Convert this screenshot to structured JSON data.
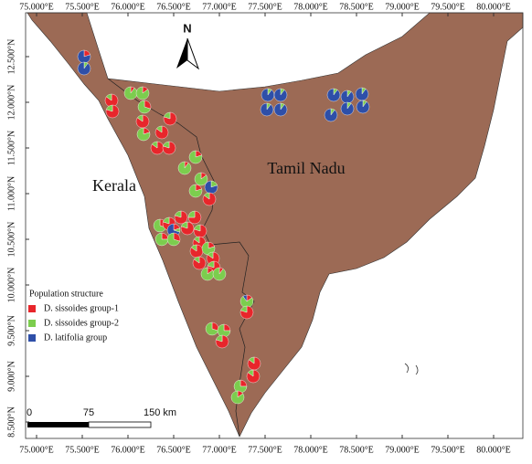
{
  "chart_data": {
    "type": "pie-map",
    "xlim": [
      74.88,
      80.32
    ],
    "ylim": [
      8.32,
      12.98
    ],
    "xticks": [
      {
        "value": 75,
        "label": "75.000°E"
      },
      {
        "value": 75.5,
        "label": "75.500°E"
      },
      {
        "value": 76,
        "label": "76.000°E"
      },
      {
        "value": 76.5,
        "label": "76.500°E"
      },
      {
        "value": 77,
        "label": "77.000°E"
      },
      {
        "value": 77.5,
        "label": "77.500°E"
      },
      {
        "value": 78,
        "label": "78.000°E"
      },
      {
        "value": 78.5,
        "label": "78.500°E"
      },
      {
        "value": 79,
        "label": "79.000°E"
      },
      {
        "value": 79.5,
        "label": "79.500°E"
      },
      {
        "value": 80,
        "label": "80.000°E"
      }
    ],
    "yticks": [
      {
        "value": 8.5,
        "label": "8.500°N"
      },
      {
        "value": 9,
        "label": "9.000°N"
      },
      {
        "value": 9.5,
        "label": "9.500°N"
      },
      {
        "value": 10,
        "label": "10.000°N"
      },
      {
        "value": 10.5,
        "label": "10.500°N"
      },
      {
        "value": 11,
        "label": "11.000°N"
      },
      {
        "value": 11.5,
        "label": "11.500°N"
      },
      {
        "value": 12,
        "label": "12.000°N"
      },
      {
        "value": 12.5,
        "label": "12.500°N"
      }
    ],
    "north_label": "N",
    "regions": [
      "Kerala",
      "Tamil Nadu"
    ],
    "legend_title": "Population structure",
    "series": [
      {
        "name": "D. sissoides group-1",
        "color": "#e8262b"
      },
      {
        "name": "D. sissoides group-2",
        "color": "#7ccd4e"
      },
      {
        "name": "D. latifolia group",
        "color": "#2e4fa8"
      }
    ],
    "scale_bar": [
      "0",
      "75",
      "150 km"
    ],
    "sites": [
      {
        "lon": 75.52,
        "lat": 12.5,
        "shares": [
          0.2,
          0,
          0.8
        ]
      },
      {
        "lon": 75.52,
        "lat": 12.37,
        "shares": [
          0,
          0.1,
          0.9
        ]
      },
      {
        "lon": 75.82,
        "lat": 12.02,
        "shares": [
          0.85,
          0.15,
          0
        ]
      },
      {
        "lon": 75.83,
        "lat": 11.9,
        "shares": [
          0.8,
          0.2,
          0
        ]
      },
      {
        "lon": 76.03,
        "lat": 12.1,
        "shares": [
          0.1,
          0.9,
          0
        ]
      },
      {
        "lon": 76.16,
        "lat": 12.1,
        "shares": [
          0.15,
          0.85,
          0
        ]
      },
      {
        "lon": 76.18,
        "lat": 11.95,
        "shares": [
          0.3,
          0.7,
          0
        ]
      },
      {
        "lon": 76.16,
        "lat": 11.79,
        "shares": [
          0.85,
          0.15,
          0
        ]
      },
      {
        "lon": 76.17,
        "lat": 11.65,
        "shares": [
          0.2,
          0.8,
          0
        ]
      },
      {
        "lon": 76.46,
        "lat": 11.82,
        "shares": [
          0.8,
          0.2,
          0
        ]
      },
      {
        "lon": 76.37,
        "lat": 11.67,
        "shares": [
          0.85,
          0.15,
          0
        ]
      },
      {
        "lon": 76.32,
        "lat": 11.5,
        "shares": [
          0.85,
          0.15,
          0
        ]
      },
      {
        "lon": 76.45,
        "lat": 11.5,
        "shares": [
          0.8,
          0.2,
          0
        ]
      },
      {
        "lon": 76.74,
        "lat": 11.4,
        "shares": [
          0.2,
          0.8,
          0
        ]
      },
      {
        "lon": 76.62,
        "lat": 11.28,
        "shares": [
          0.1,
          0.9,
          0
        ]
      },
      {
        "lon": 76.8,
        "lat": 11.16,
        "shares": [
          0.15,
          0.85,
          0
        ]
      },
      {
        "lon": 76.74,
        "lat": 11.03,
        "shares": [
          0.2,
          0.8,
          0
        ]
      },
      {
        "lon": 76.91,
        "lat": 11.07,
        "shares": [
          0,
          0.2,
          0.8
        ]
      },
      {
        "lon": 76.89,
        "lat": 10.94,
        "shares": [
          0.85,
          0.15,
          0
        ]
      },
      {
        "lon": 77.53,
        "lat": 12.08,
        "shares": [
          0,
          0.1,
          0.9
        ]
      },
      {
        "lon": 77.67,
        "lat": 12.08,
        "shares": [
          0,
          0.1,
          0.9
        ]
      },
      {
        "lon": 77.52,
        "lat": 11.92,
        "shares": [
          0,
          0.1,
          0.9
        ]
      },
      {
        "lon": 77.67,
        "lat": 11.92,
        "shares": [
          0,
          0.1,
          0.9
        ]
      },
      {
        "lon": 78.25,
        "lat": 12.08,
        "shares": [
          0,
          0.1,
          0.9
        ]
      },
      {
        "lon": 78.4,
        "lat": 12.06,
        "shares": [
          0,
          0.1,
          0.9
        ]
      },
      {
        "lon": 78.56,
        "lat": 12.09,
        "shares": [
          0,
          0.1,
          0.9
        ]
      },
      {
        "lon": 78.22,
        "lat": 11.86,
        "shares": [
          0,
          0.1,
          0.9
        ]
      },
      {
        "lon": 78.4,
        "lat": 11.93,
        "shares": [
          0,
          0.1,
          0.9
        ]
      },
      {
        "lon": 78.57,
        "lat": 11.95,
        "shares": [
          0,
          0.1,
          0.9
        ]
      },
      {
        "lon": 76.35,
        "lat": 10.65,
        "shares": [
          0.3,
          0.7,
          0
        ]
      },
      {
        "lon": 76.45,
        "lat": 10.67,
        "shares": [
          0.8,
          0.2,
          0
        ]
      },
      {
        "lon": 76.37,
        "lat": 10.5,
        "shares": [
          0.25,
          0.75,
          0
        ]
      },
      {
        "lon": 76.58,
        "lat": 10.74,
        "shares": [
          0.8,
          0.2,
          0
        ]
      },
      {
        "lon": 76.73,
        "lat": 10.74,
        "shares": [
          0.75,
          0.25,
          0
        ]
      },
      {
        "lon": 76.5,
        "lat": 10.6,
        "shares": [
          0.2,
          0.1,
          0.7
        ]
      },
      {
        "lon": 76.65,
        "lat": 10.62,
        "shares": [
          0.8,
          0.2,
          0
        ]
      },
      {
        "lon": 76.79,
        "lat": 10.59,
        "shares": [
          0.8,
          0.2,
          0
        ]
      },
      {
        "lon": 76.5,
        "lat": 10.5,
        "shares": [
          0.3,
          0.7,
          0
        ]
      },
      {
        "lon": 76.78,
        "lat": 10.46,
        "shares": [
          0.85,
          0.15,
          0
        ]
      },
      {
        "lon": 76.75,
        "lat": 10.37,
        "shares": [
          0.85,
          0.15,
          0
        ]
      },
      {
        "lon": 76.88,
        "lat": 10.4,
        "shares": [
          0.2,
          0.8,
          0
        ]
      },
      {
        "lon": 76.93,
        "lat": 10.29,
        "shares": [
          0.85,
          0.15,
          0
        ]
      },
      {
        "lon": 76.78,
        "lat": 10.24,
        "shares": [
          0.85,
          0.15,
          0
        ]
      },
      {
        "lon": 76.94,
        "lat": 10.19,
        "shares": [
          0.8,
          0.2,
          0
        ]
      },
      {
        "lon": 76.87,
        "lat": 10.12,
        "shares": [
          0.15,
          0.85,
          0
        ]
      },
      {
        "lon": 77.0,
        "lat": 10.12,
        "shares": [
          0.1,
          0.9,
          0
        ]
      },
      {
        "lon": 77.3,
        "lat": 9.82,
        "shares": [
          0.15,
          0.75,
          0.1
        ]
      },
      {
        "lon": 77.3,
        "lat": 9.7,
        "shares": [
          0.8,
          0.2,
          0
        ]
      },
      {
        "lon": 76.92,
        "lat": 9.52,
        "shares": [
          0.3,
          0.7,
          0
        ]
      },
      {
        "lon": 77.05,
        "lat": 9.5,
        "shares": [
          0.25,
          0.75,
          0
        ]
      },
      {
        "lon": 77.03,
        "lat": 9.38,
        "shares": [
          0.8,
          0.2,
          0
        ]
      },
      {
        "lon": 77.38,
        "lat": 9.14,
        "shares": [
          0.85,
          0.15,
          0
        ]
      },
      {
        "lon": 77.37,
        "lat": 9.0,
        "shares": [
          0.85,
          0.15,
          0
        ]
      },
      {
        "lon": 77.23,
        "lat": 8.89,
        "shares": [
          0.25,
          0.75,
          0
        ]
      },
      {
        "lon": 77.2,
        "lat": 8.77,
        "shares": [
          0.15,
          0.85,
          0
        ]
      }
    ]
  }
}
